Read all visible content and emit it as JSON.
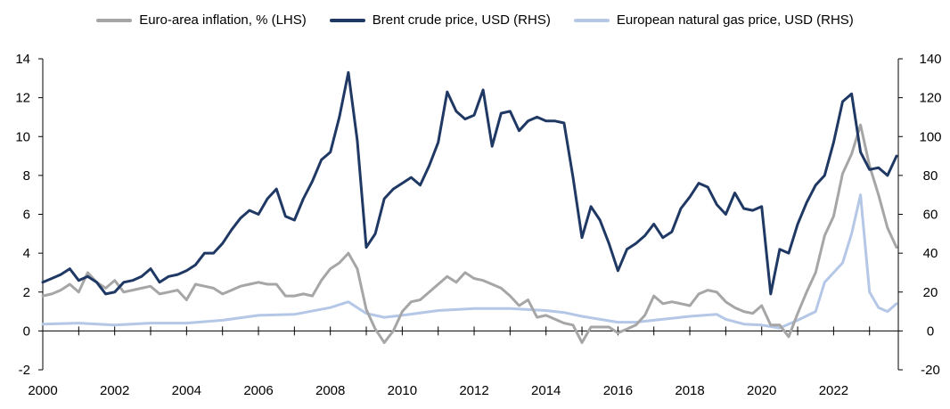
{
  "chart_data": {
    "type": "line",
    "title": "",
    "xlabel": "",
    "ylabel_left": "",
    "ylabel_right": "",
    "xlim": [
      2000,
      2023.8
    ],
    "ylim_left": [
      -2,
      14
    ],
    "ylim_right": [
      -20,
      140
    ],
    "x_ticks": [
      "2000",
      "2002",
      "2004",
      "2006",
      "2008",
      "2010",
      "2012",
      "2014",
      "2016",
      "2018",
      "2020",
      "2022"
    ],
    "y_ticks_left": [
      "-2",
      "0",
      "2",
      "4",
      "6",
      "8",
      "10",
      "12",
      "14"
    ],
    "y_ticks_right": [
      "-20",
      "0",
      "20",
      "40",
      "60",
      "80",
      "100",
      "120",
      "140"
    ],
    "grid": false,
    "legend_position": "top",
    "series": [
      {
        "name": "Euro-area inflation, % (LHS)",
        "axis": "left",
        "color": "#a6a6a6",
        "points": [
          [
            2000.0,
            1.8
          ],
          [
            2000.25,
            1.9
          ],
          [
            2000.5,
            2.1
          ],
          [
            2000.75,
            2.4
          ],
          [
            2001.0,
            2.0
          ],
          [
            2001.25,
            3.0
          ],
          [
            2001.5,
            2.5
          ],
          [
            2001.75,
            2.2
          ],
          [
            2002.0,
            2.6
          ],
          [
            2002.25,
            2.0
          ],
          [
            2002.5,
            2.1
          ],
          [
            2002.75,
            2.2
          ],
          [
            2003.0,
            2.3
          ],
          [
            2003.25,
            1.9
          ],
          [
            2003.5,
            2.0
          ],
          [
            2003.75,
            2.1
          ],
          [
            2004.0,
            1.6
          ],
          [
            2004.25,
            2.4
          ],
          [
            2004.5,
            2.3
          ],
          [
            2004.75,
            2.2
          ],
          [
            2005.0,
            1.9
          ],
          [
            2005.25,
            2.1
          ],
          [
            2005.5,
            2.3
          ],
          [
            2005.75,
            2.4
          ],
          [
            2006.0,
            2.5
          ],
          [
            2006.25,
            2.4
          ],
          [
            2006.5,
            2.4
          ],
          [
            2006.75,
            1.8
          ],
          [
            2007.0,
            1.8
          ],
          [
            2007.25,
            1.9
          ],
          [
            2007.5,
            1.8
          ],
          [
            2007.75,
            2.6
          ],
          [
            2008.0,
            3.2
          ],
          [
            2008.25,
            3.5
          ],
          [
            2008.5,
            4.0
          ],
          [
            2008.75,
            3.2
          ],
          [
            2009.0,
            1.1
          ],
          [
            2009.25,
            0.1
          ],
          [
            2009.5,
            -0.6
          ],
          [
            2009.75,
            0.0
          ],
          [
            2010.0,
            1.0
          ],
          [
            2010.25,
            1.5
          ],
          [
            2010.5,
            1.6
          ],
          [
            2010.75,
            2.0
          ],
          [
            2011.0,
            2.4
          ],
          [
            2011.25,
            2.8
          ],
          [
            2011.5,
            2.5
          ],
          [
            2011.75,
            3.0
          ],
          [
            2012.0,
            2.7
          ],
          [
            2012.25,
            2.6
          ],
          [
            2012.5,
            2.4
          ],
          [
            2012.75,
            2.2
          ],
          [
            2013.0,
            1.8
          ],
          [
            2013.25,
            1.3
          ],
          [
            2013.5,
            1.6
          ],
          [
            2013.75,
            0.7
          ],
          [
            2014.0,
            0.8
          ],
          [
            2014.25,
            0.6
          ],
          [
            2014.5,
            0.4
          ],
          [
            2014.75,
            0.3
          ],
          [
            2015.0,
            -0.6
          ],
          [
            2015.25,
            0.2
          ],
          [
            2015.5,
            0.2
          ],
          [
            2015.75,
            0.2
          ],
          [
            2016.0,
            -0.1
          ],
          [
            2016.25,
            0.1
          ],
          [
            2016.5,
            0.3
          ],
          [
            2016.75,
            0.8
          ],
          [
            2017.0,
            1.8
          ],
          [
            2017.25,
            1.4
          ],
          [
            2017.5,
            1.5
          ],
          [
            2017.75,
            1.4
          ],
          [
            2018.0,
            1.3
          ],
          [
            2018.25,
            1.9
          ],
          [
            2018.5,
            2.1
          ],
          [
            2018.75,
            2.0
          ],
          [
            2019.0,
            1.5
          ],
          [
            2019.25,
            1.2
          ],
          [
            2019.5,
            1.0
          ],
          [
            2019.75,
            0.9
          ],
          [
            2020.0,
            1.3
          ],
          [
            2020.25,
            0.3
          ],
          [
            2020.5,
            0.3
          ],
          [
            2020.75,
            -0.3
          ],
          [
            2021.0,
            0.9
          ],
          [
            2021.25,
            2.0
          ],
          [
            2021.5,
            3.0
          ],
          [
            2021.75,
            4.9
          ],
          [
            2022.0,
            5.9
          ],
          [
            2022.25,
            8.1
          ],
          [
            2022.5,
            9.1
          ],
          [
            2022.75,
            10.6
          ],
          [
            2023.0,
            8.5
          ],
          [
            2023.25,
            7.0
          ],
          [
            2023.5,
            5.3
          ],
          [
            2023.75,
            4.3
          ]
        ]
      },
      {
        "name": "Brent crude price, USD (RHS)",
        "axis": "right",
        "color": "#1f3864",
        "points": [
          [
            2000.0,
            25
          ],
          [
            2000.25,
            27
          ],
          [
            2000.5,
            29
          ],
          [
            2000.75,
            32
          ],
          [
            2001.0,
            26
          ],
          [
            2001.25,
            28
          ],
          [
            2001.5,
            25
          ],
          [
            2001.75,
            19
          ],
          [
            2002.0,
            20
          ],
          [
            2002.25,
            25
          ],
          [
            2002.5,
            26
          ],
          [
            2002.75,
            28
          ],
          [
            2003.0,
            32
          ],
          [
            2003.25,
            25
          ],
          [
            2003.5,
            28
          ],
          [
            2003.75,
            29
          ],
          [
            2004.0,
            31
          ],
          [
            2004.25,
            34
          ],
          [
            2004.5,
            40
          ],
          [
            2004.75,
            40
          ],
          [
            2005.0,
            45
          ],
          [
            2005.25,
            52
          ],
          [
            2005.5,
            58
          ],
          [
            2005.75,
            62
          ],
          [
            2006.0,
            60
          ],
          [
            2006.25,
            68
          ],
          [
            2006.5,
            73
          ],
          [
            2006.75,
            59
          ],
          [
            2007.0,
            57
          ],
          [
            2007.25,
            68
          ],
          [
            2007.5,
            77
          ],
          [
            2007.75,
            88
          ],
          [
            2008.0,
            92
          ],
          [
            2008.25,
            110
          ],
          [
            2008.5,
            133
          ],
          [
            2008.75,
            98
          ],
          [
            2009.0,
            43
          ],
          [
            2009.25,
            50
          ],
          [
            2009.5,
            68
          ],
          [
            2009.75,
            73
          ],
          [
            2010.0,
            76
          ],
          [
            2010.25,
            79
          ],
          [
            2010.5,
            75
          ],
          [
            2010.75,
            85
          ],
          [
            2011.0,
            97
          ],
          [
            2011.25,
            123
          ],
          [
            2011.5,
            113
          ],
          [
            2011.75,
            109
          ],
          [
            2012.0,
            111
          ],
          [
            2012.25,
            124
          ],
          [
            2012.5,
            95
          ],
          [
            2012.75,
            112
          ],
          [
            2013.0,
            113
          ],
          [
            2013.25,
            103
          ],
          [
            2013.5,
            108
          ],
          [
            2013.75,
            110
          ],
          [
            2014.0,
            108
          ],
          [
            2014.25,
            108
          ],
          [
            2014.5,
            107
          ],
          [
            2014.75,
            79
          ],
          [
            2015.0,
            48
          ],
          [
            2015.25,
            64
          ],
          [
            2015.5,
            57
          ],
          [
            2015.75,
            45
          ],
          [
            2016.0,
            31
          ],
          [
            2016.25,
            42
          ],
          [
            2016.5,
            45
          ],
          [
            2016.75,
            49
          ],
          [
            2017.0,
            55
          ],
          [
            2017.25,
            48
          ],
          [
            2017.5,
            51
          ],
          [
            2017.75,
            63
          ],
          [
            2018.0,
            69
          ],
          [
            2018.25,
            76
          ],
          [
            2018.5,
            74
          ],
          [
            2018.75,
            65
          ],
          [
            2019.0,
            60
          ],
          [
            2019.25,
            71
          ],
          [
            2019.5,
            63
          ],
          [
            2019.75,
            62
          ],
          [
            2020.0,
            64
          ],
          [
            2020.25,
            19
          ],
          [
            2020.5,
            42
          ],
          [
            2020.75,
            40
          ],
          [
            2021.0,
            55
          ],
          [
            2021.25,
            66
          ],
          [
            2021.5,
            75
          ],
          [
            2021.75,
            80
          ],
          [
            2022.0,
            97
          ],
          [
            2022.25,
            118
          ],
          [
            2022.5,
            122
          ],
          [
            2022.75,
            92
          ],
          [
            2023.0,
            83
          ],
          [
            2023.25,
            84
          ],
          [
            2023.5,
            80
          ],
          [
            2023.75,
            90
          ]
        ]
      },
      {
        "name": "European natural gas price, USD (RHS)",
        "axis": "right",
        "color": "#b4c7e7",
        "points": [
          [
            2000.0,
            3.5
          ],
          [
            2001.0,
            4.0
          ],
          [
            2002.0,
            3.0
          ],
          [
            2003.0,
            4.0
          ],
          [
            2004.0,
            4.0
          ],
          [
            2005.0,
            5.5
          ],
          [
            2006.0,
            8.0
          ],
          [
            2007.0,
            8.5
          ],
          [
            2008.0,
            12.0
          ],
          [
            2008.5,
            15.0
          ],
          [
            2009.0,
            9.0
          ],
          [
            2009.5,
            7.0
          ],
          [
            2010.0,
            8.0
          ],
          [
            2011.0,
            10.5
          ],
          [
            2012.0,
            11.5
          ],
          [
            2013.0,
            11.5
          ],
          [
            2014.0,
            10.5
          ],
          [
            2014.5,
            9.5
          ],
          [
            2015.0,
            7.5
          ],
          [
            2016.0,
            4.5
          ],
          [
            2016.5,
            4.5
          ],
          [
            2017.0,
            5.5
          ],
          [
            2018.0,
            7.5
          ],
          [
            2018.75,
            8.5
          ],
          [
            2019.0,
            6.0
          ],
          [
            2019.5,
            3.5
          ],
          [
            2020.0,
            3.0
          ],
          [
            2020.5,
            1.5
          ],
          [
            2021.0,
            5.5
          ],
          [
            2021.5,
            10.0
          ],
          [
            2021.75,
            25.0
          ],
          [
            2022.0,
            30.0
          ],
          [
            2022.25,
            35.0
          ],
          [
            2022.5,
            50.0
          ],
          [
            2022.75,
            70.0
          ],
          [
            2023.0,
            20.0
          ],
          [
            2023.25,
            12.0
          ],
          [
            2023.5,
            10.0
          ],
          [
            2023.75,
            14.0
          ]
        ]
      }
    ]
  }
}
